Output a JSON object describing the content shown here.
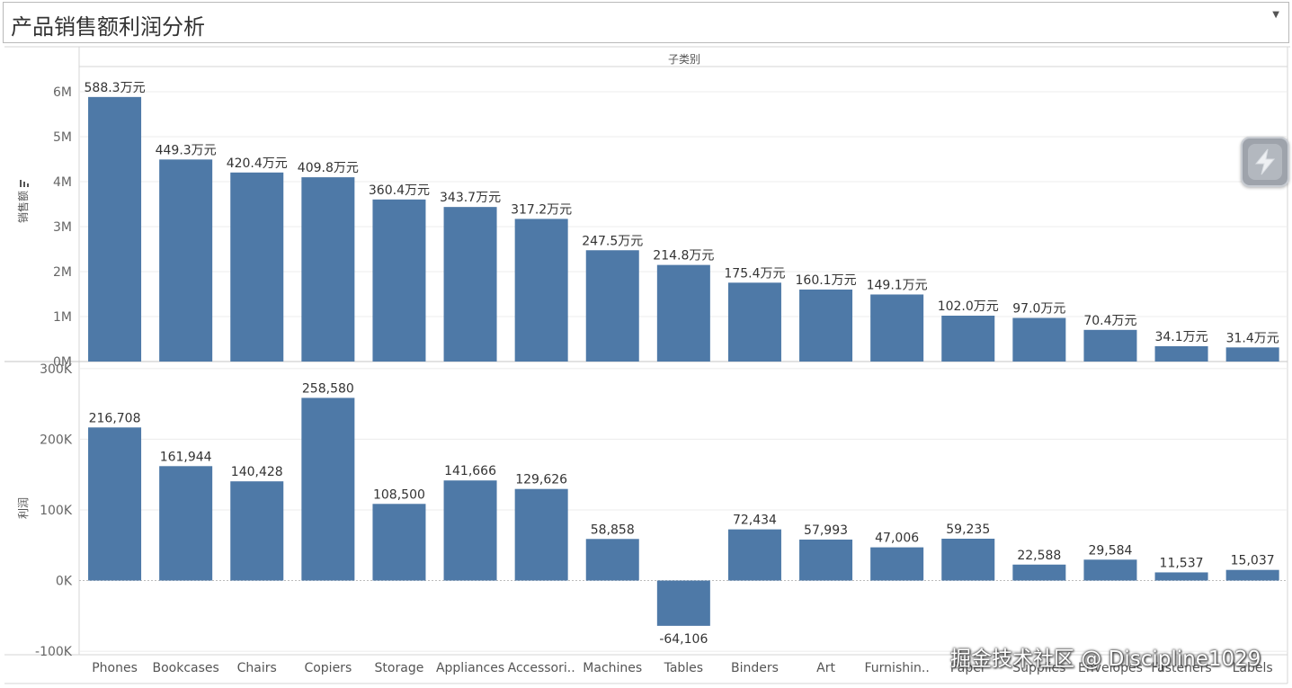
{
  "title": "产品销售额利润分析",
  "header": {
    "dropdown_icon": "dropdown-caret-icon",
    "caret": "▼"
  },
  "colors": {
    "bar": "#4e79a7",
    "grid": "#ececec",
    "axis": "#d4d4d4",
    "zero": "#bdbdbd"
  },
  "watermark": "掘金技术社区 @ Discipline1029",
  "floating_button": {
    "icon": "lightning-icon"
  },
  "chart_data": {
    "type": "bar",
    "column_header": "子类别",
    "categories": [
      "Phones",
      "Bookcases",
      "Chairs",
      "Copiers",
      "Storage",
      "Appliances",
      "Accessori..",
      "Machines",
      "Tables",
      "Binders",
      "Art",
      "Furnishin..",
      "Paper",
      "Supplies",
      "Envelopes",
      "Fasteners",
      "Labels"
    ],
    "panels": [
      {
        "name": "sales",
        "ylabel": "销售额",
        "sort_icon": "sort-descending-icon",
        "ylim": [
          0,
          6400000
        ],
        "ticks": [
          0,
          1000000,
          2000000,
          3000000,
          4000000,
          5000000,
          6000000
        ],
        "tick_labels": [
          "0M",
          "1M",
          "2M",
          "3M",
          "4M",
          "5M",
          "6M"
        ],
        "values": [
          5883000,
          4493000,
          4204000,
          4098000,
          3604000,
          3437000,
          3172000,
          2475000,
          2148000,
          1754000,
          1601000,
          1491000,
          1020000,
          970000,
          704000,
          341000,
          314000
        ],
        "labels": [
          "588.3万元",
          "449.3万元",
          "420.4万元",
          "409.8万元",
          "360.4万元",
          "343.7万元",
          "317.2万元",
          "247.5万元",
          "214.8万元",
          "175.4万元",
          "160.1万元",
          "149.1万元",
          "102.0万元",
          "97.0万元",
          "70.4万元",
          "34.1万元",
          "31.4万元"
        ]
      },
      {
        "name": "profit",
        "ylabel": "利润",
        "ylim": [
          -105000,
          310000
        ],
        "ticks": [
          -100000,
          0,
          100000,
          200000,
          300000
        ],
        "tick_labels": [
          "-100K",
          "0K",
          "100K",
          "200K",
          "300K"
        ],
        "values": [
          216708,
          161944,
          140428,
          258580,
          108500,
          141666,
          129626,
          58858,
          -64106,
          72434,
          57993,
          47006,
          59235,
          22588,
          29584,
          11537,
          15037
        ],
        "labels": [
          "216,708",
          "161,944",
          "140,428",
          "258,580",
          "108,500",
          "141,666",
          "129,626",
          "58,858",
          "-64,106",
          "72,434",
          "57,993",
          "47,006",
          "59,235",
          "22,588",
          "29,584",
          "11,537",
          "15,037"
        ]
      }
    ]
  }
}
